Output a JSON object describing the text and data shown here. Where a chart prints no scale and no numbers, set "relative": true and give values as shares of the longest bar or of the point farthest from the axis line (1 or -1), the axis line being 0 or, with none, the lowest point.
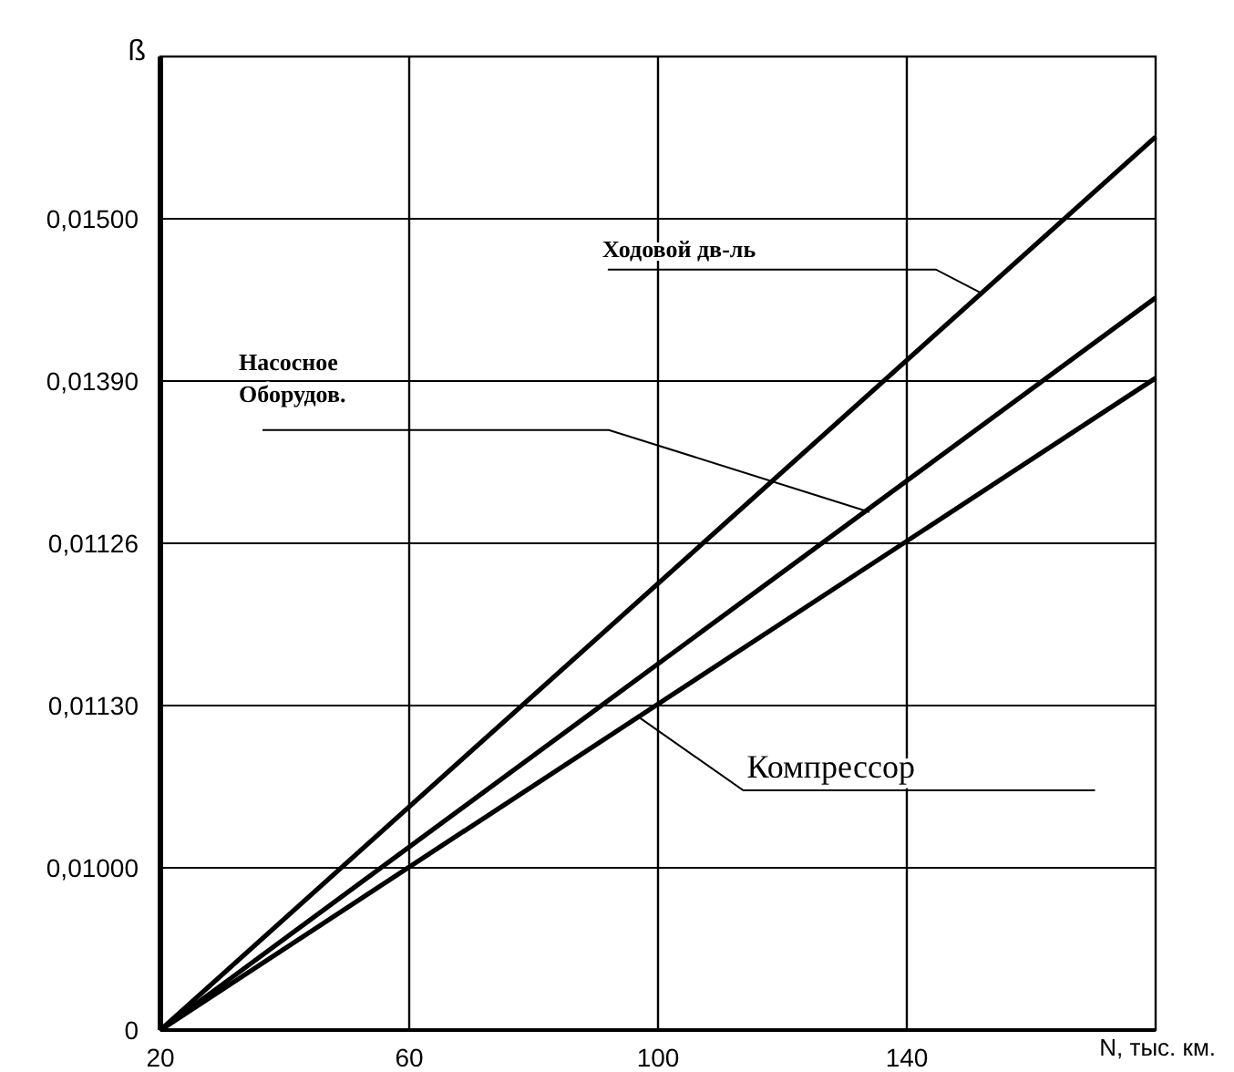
{
  "chart_data": {
    "type": "line",
    "ylabel": "ß",
    "xlabel": "N, тыс. км.",
    "relative": true,
    "x": [
      20,
      180
    ],
    "series": [
      {
        "color": "#000000",
        "values": [
          0,
          1
        ]
      },
      {
        "color": "#000000",
        "values": [
          0,
          0.82
        ]
      },
      {
        "color": "#000000",
        "values": [
          0,
          0.73
        ]
      }
    ],
    "xlim": [
      20,
      180
    ],
    "xticks": [
      20,
      60,
      100,
      140
    ],
    "grid": true,
    "marker": "none",
    "line_style": "solid",
    "annotations": [
      {
        "text": "Ходовой дв-ль",
        "x": 152,
        "y": 0.825
      },
      {
        "text": "Насосное\nОборудов.",
        "x": 134,
        "y": 0.58
      },
      {
        "text": "Компрессор",
        "x": 97,
        "y": 0.35
      },
      "0",
      "0,01000",
      "0,01130",
      "0,01126",
      "0,01390",
      "0,01500"
    ]
  }
}
